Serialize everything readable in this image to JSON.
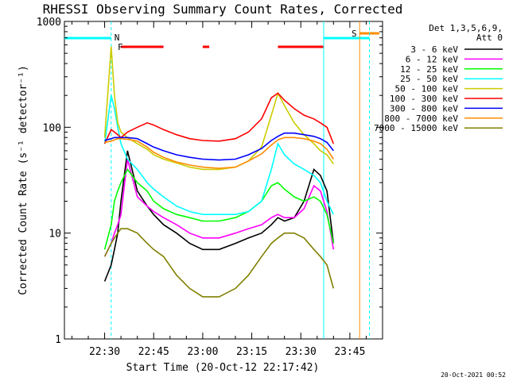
{
  "chart_data": {
    "type": "line",
    "title": "RHESSI Observing Summary Count Rates, Corrected",
    "xlabel": "Start Time (20-Oct-12 22:17:42)",
    "ylabel": "Corrected Count Rate (s⁻¹ detector⁻¹)",
    "y_scale": "log",
    "ylim": [
      1,
      1000
    ],
    "xlim": [
      "22:17:42",
      "23:55:00"
    ],
    "x_ticks": [
      "22:30",
      "22:45",
      "23:00",
      "23:15",
      "23:30",
      "23:45"
    ],
    "y_ticks": [
      "1",
      "10",
      "100",
      "1000"
    ],
    "timestamp": "20-Oct-2021 00:52",
    "legend": {
      "header": [
        "Det 1,3,5,6,9,",
        "Att 0"
      ],
      "placement": "right"
    },
    "x": [
      "22:30",
      "22:32",
      "22:33",
      "22:34",
      "22:35",
      "22:37",
      "22:40",
      "22:43",
      "22:45",
      "22:48",
      "22:52",
      "22:56",
      "23:00",
      "23:05",
      "23:10",
      "23:14",
      "23:18",
      "23:21",
      "23:23",
      "23:25",
      "23:28",
      "23:31",
      "23:34",
      "23:36",
      "23:38",
      "23:40"
    ],
    "series": [
      {
        "name": "3 - 6 keV",
        "color": "#000000",
        "values": [
          3.5,
          5,
          7,
          10,
          20,
          60,
          25,
          18,
          15,
          12,
          10,
          8,
          7,
          7,
          8,
          9,
          10,
          12,
          14,
          13,
          14,
          20,
          40,
          35,
          25,
          8
        ]
      },
      {
        "name": "6 - 12 keV",
        "color": "#ff00ff",
        "values": [
          6,
          8,
          10,
          12,
          15,
          50,
          22,
          18,
          16,
          14,
          12,
          10,
          9,
          9,
          10,
          11,
          12,
          14,
          15,
          14,
          14,
          17,
          28,
          25,
          16,
          7
        ]
      },
      {
        "name": "12 - 25 keV",
        "color": "#00ff00",
        "values": [
          7,
          12,
          20,
          25,
          30,
          40,
          30,
          25,
          20,
          17,
          15,
          14,
          13,
          13,
          14,
          16,
          20,
          28,
          30,
          26,
          22,
          20,
          22,
          20,
          15,
          8
        ]
      },
      {
        "name": "25 - 50 keV",
        "color": "#00ffff",
        "values": [
          70,
          200,
          150,
          100,
          70,
          50,
          40,
          30,
          26,
          22,
          18,
          16,
          15,
          15,
          15,
          16,
          20,
          40,
          70,
          55,
          45,
          40,
          35,
          30,
          20,
          15
        ]
      },
      {
        "name": "50 - 100 keV",
        "color": "#cccc00",
        "values": [
          80,
          580,
          200,
          110,
          90,
          80,
          70,
          62,
          55,
          50,
          46,
          42,
          40,
          40,
          42,
          48,
          65,
          130,
          210,
          160,
          110,
          85,
          70,
          60,
          55,
          45
        ]
      },
      {
        "name": "100 - 300 keV",
        "color": "#ff0000",
        "values": [
          70,
          95,
          90,
          85,
          80,
          90,
          100,
          110,
          105,
          95,
          85,
          78,
          75,
          74,
          78,
          90,
          120,
          190,
          210,
          180,
          150,
          130,
          120,
          110,
          100,
          70
        ]
      },
      {
        "name": "300 - 800 keV",
        "color": "#0000ff",
        "values": [
          75,
          78,
          80,
          80,
          80,
          80,
          78,
          70,
          65,
          60,
          55,
          52,
          50,
          49,
          50,
          55,
          63,
          75,
          82,
          88,
          88,
          85,
          82,
          78,
          72,
          60
        ]
      },
      {
        "name": "800 - 7000 keV",
        "color": "#ff8c00",
        "values": [
          72,
          74,
          76,
          78,
          78,
          77,
          74,
          65,
          58,
          52,
          47,
          44,
          42,
          41,
          42,
          48,
          56,
          68,
          76,
          80,
          80,
          78,
          74,
          70,
          62,
          50
        ]
      },
      {
        "name": "7000 - 15000 keV",
        "color": "#808000",
        "values": [
          6,
          8,
          9,
          10,
          11,
          11,
          10,
          8,
          7,
          6,
          4,
          3,
          2.5,
          2.5,
          3,
          4,
          6,
          8,
          9,
          10,
          10,
          9,
          7,
          6,
          5,
          3
        ]
      }
    ],
    "flags": {
      "top_line_color": "#00ffff",
      "N_label": "N",
      "F_label": "F",
      "S_label": "S",
      "flare_bar_color": "#ff0000",
      "saa_bar_color": "#ff8c00"
    }
  }
}
